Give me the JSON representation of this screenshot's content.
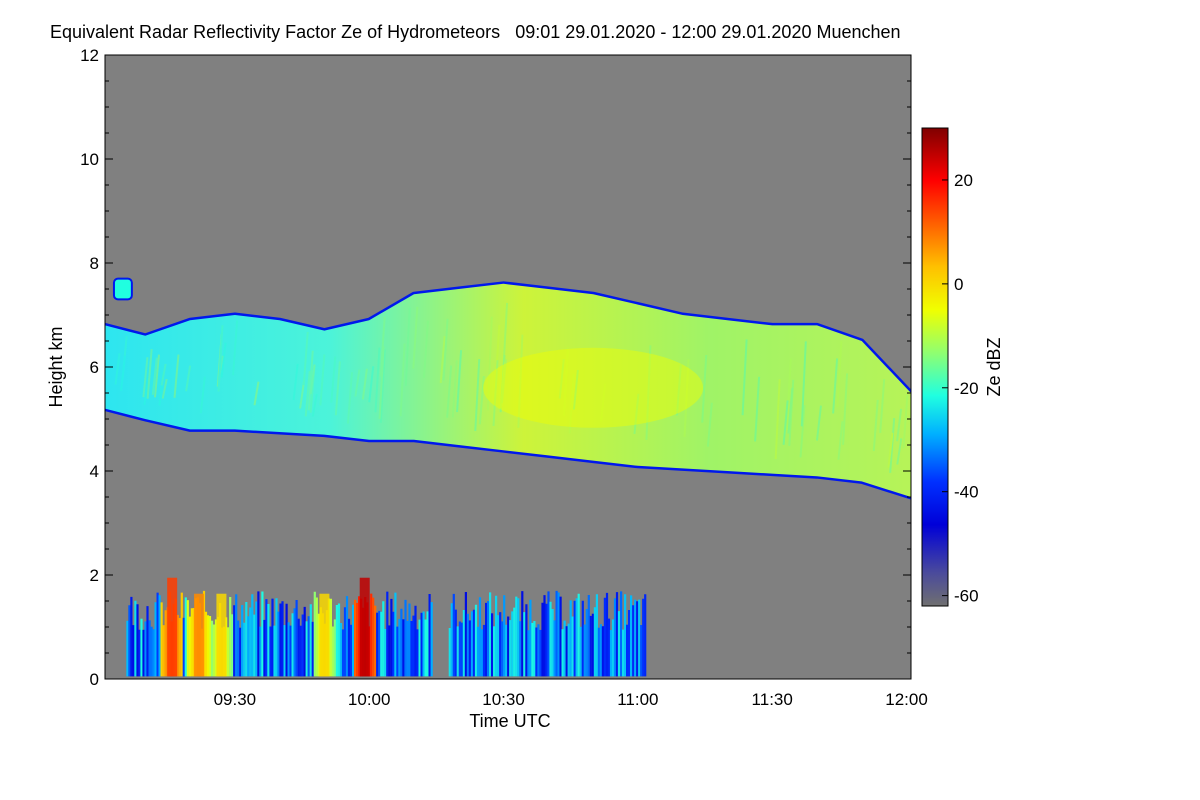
{
  "chart_data": {
    "type": "heatmap",
    "title": "Equivalent Radar Reflectivity Factor Ze of Hydrometeors",
    "time_range_text": "09:01 29.01.2020 - 12:00 29.01.2020",
    "location": "Muenchen",
    "xlabel": "Time UTC",
    "ylabel": "Height km",
    "xlim_minutes_utc": [
      541,
      721
    ],
    "ylim_km": [
      0,
      12
    ],
    "x_ticks": [
      {
        "label": "09:30",
        "minutes": 570
      },
      {
        "label": "10:00",
        "minutes": 600
      },
      {
        "label": "10:30",
        "minutes": 630
      },
      {
        "label": "11:00",
        "minutes": 660
      },
      {
        "label": "11:30",
        "minutes": 690
      },
      {
        "label": "12:00",
        "minutes": 720
      }
    ],
    "y_ticks": [
      0,
      2,
      4,
      6,
      8,
      10,
      12
    ],
    "colorbar": {
      "label": "Ze dBZ",
      "range": [
        -62,
        30
      ],
      "ticks": [
        20,
        0,
        -20,
        -40,
        -60
      ]
    },
    "background_color": "#808080",
    "features": [
      {
        "name": "upper-cloud-layer",
        "ze_dbz_typical": -15,
        "ze_dbz_max": -5,
        "profile": [
          {
            "t": 541,
            "base": 5.2,
            "top": 6.8
          },
          {
            "t": 550,
            "base": 5.0,
            "top": 6.6
          },
          {
            "t": 560,
            "base": 4.8,
            "top": 6.9
          },
          {
            "t": 570,
            "base": 4.8,
            "top": 7.0
          },
          {
            "t": 580,
            "base": 4.75,
            "top": 6.9
          },
          {
            "t": 590,
            "base": 4.7,
            "top": 6.7
          },
          {
            "t": 600,
            "base": 4.6,
            "top": 6.9
          },
          {
            "t": 610,
            "base": 4.6,
            "top": 7.4
          },
          {
            "t": 620,
            "base": 4.5,
            "top": 7.5
          },
          {
            "t": 630,
            "base": 4.4,
            "top": 7.6
          },
          {
            "t": 640,
            "base": 4.3,
            "top": 7.5
          },
          {
            "t": 650,
            "base": 4.2,
            "top": 7.4
          },
          {
            "t": 660,
            "base": 4.1,
            "top": 7.2
          },
          {
            "t": 670,
            "base": 4.05,
            "top": 7.0
          },
          {
            "t": 680,
            "base": 4.0,
            "top": 6.9
          },
          {
            "t": 690,
            "base": 3.95,
            "top": 6.8
          },
          {
            "t": 700,
            "base": 3.9,
            "top": 6.8
          },
          {
            "t": 710,
            "base": 3.8,
            "top": 6.5
          },
          {
            "t": 721,
            "base": 3.5,
            "top": 5.5
          }
        ]
      },
      {
        "name": "high-cloud-patch",
        "t_start": 543,
        "t_end": 547,
        "base": 7.3,
        "top": 7.7,
        "ze_dbz_typical": -22
      },
      {
        "name": "low-precipitation",
        "t_start": 546,
        "t_end": 662,
        "base": 0.0,
        "top": 1.7,
        "ze_dbz_typical": -30,
        "max_height_km": 2.05,
        "cores": [
          {
            "t": 556,
            "ze_dbz": 15
          },
          {
            "t": 562,
            "ze_dbz": 8
          },
          {
            "t": 567,
            "ze_dbz": 0
          },
          {
            "t": 590,
            "ze_dbz": 0
          },
          {
            "t": 599,
            "ze_dbz": 25
          }
        ]
      }
    ]
  }
}
